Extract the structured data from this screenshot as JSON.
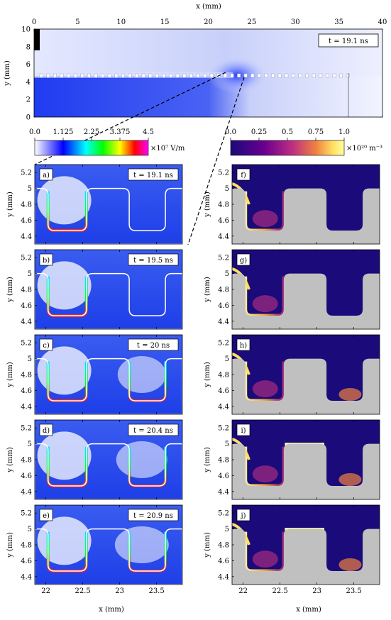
{
  "chart_data": [
    {
      "type": "heatmap",
      "id": "overview",
      "xlabel": "x (mm)",
      "ylabel": "y (mm)",
      "xlim": [
        0,
        40
      ],
      "ylim": [
        0,
        10
      ],
      "xticks": [
        "0",
        "5",
        "10",
        "15",
        "20",
        "25",
        "30",
        "35",
        "40"
      ],
      "yticks": [
        "0",
        "2",
        "4",
        "6",
        "8",
        "10"
      ],
      "time_label": "t = 19.1 ns",
      "quantity": "electric field magnitude"
    },
    {
      "type": "colorbar",
      "id": "field-colorbar",
      "ticks": [
        "0.0",
        "1.125",
        "2.25",
        "3.375",
        "4.5"
      ],
      "range": [
        0,
        4.5
      ],
      "unit": "×10⁷ V/m",
      "colors": [
        "#ffffff",
        "#0000ff",
        "#00ffff",
        "#00ff00",
        "#ffff00",
        "#ff0000",
        "#ff00ff"
      ]
    },
    {
      "type": "colorbar",
      "id": "density-colorbar",
      "ticks": [
        "0.0",
        "0.25",
        "0.5",
        "0.75",
        "1.0"
      ],
      "range": [
        0,
        1.0
      ],
      "unit": "×10²⁰ m⁻³",
      "colors": [
        "#1a0a7a",
        "#6a0090",
        "#c03080",
        "#f08040",
        "#ffe060",
        "#ffffa0"
      ]
    },
    {
      "type": "heatmap",
      "id": "zoom-panels",
      "xlabel": "x (mm)",
      "ylabel": "y (mm)",
      "xlim": [
        21.85,
        23.85
      ],
      "ylim": [
        4.3,
        5.3
      ],
      "xticks": [
        "22",
        "22.5",
        "23",
        "23.5"
      ],
      "yticks": [
        "4.4",
        "4.6",
        "4.8",
        "5",
        "5.2"
      ],
      "left_panels": [
        {
          "label": "a)",
          "time": "t = 19.1 ns"
        },
        {
          "label": "b)",
          "time": "t = 19.5 ns"
        },
        {
          "label": "c)",
          "time": "t = 20 ns"
        },
        {
          "label": "d)",
          "time": "t = 20.4 ns"
        },
        {
          "label": "e)",
          "time": "t = 20.9 ns"
        }
      ],
      "right_panels": [
        {
          "label": "f)"
        },
        {
          "label": "g)"
        },
        {
          "label": "h)"
        },
        {
          "label": "i)"
        },
        {
          "label": "j)"
        }
      ]
    }
  ]
}
